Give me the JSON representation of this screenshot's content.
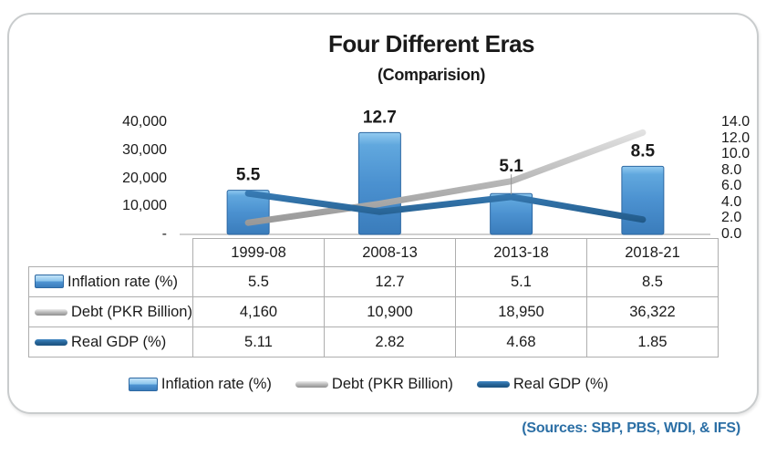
{
  "title": "Four Different Eras",
  "subtitle": "(Comparision)",
  "sources_note": "(Sources: SBP, PBS, WDI, & IFS)",
  "colors": {
    "bar_fill_light": "#93cbf1",
    "bar_fill_main": "#4b91d0",
    "bar_fill_dark": "#3a7cbb",
    "bar_border": "#2d68a2",
    "debt_line_light": "#ededed",
    "debt_line_dark": "#8f8f8f",
    "gdp_line_light": "#3f86c2",
    "gdp_line_dark": "#1d5380",
    "baseline": "#c0c0c0",
    "text": "#1a1a1a",
    "sources_text": "#2c6fa5"
  },
  "chart_data": {
    "type": "combo",
    "title": "Four Different Eras",
    "subtitle": "(Comparision)",
    "categories": [
      "1999-08",
      "2008-13",
      "2013-18",
      "2018-21"
    ],
    "series": [
      {
        "name": "Inflation rate (%)",
        "type": "bar",
        "axis": "right",
        "values": [
          5.5,
          12.7,
          5.1,
          8.5
        ],
        "labels": [
          "5.5",
          "12.7",
          "5.1",
          "8.5"
        ],
        "callout_index": 2
      },
      {
        "name": "Debt (PKR Billion)",
        "type": "line",
        "axis": "left",
        "values": [
          4160,
          10900,
          18950,
          36322
        ],
        "labels": [
          "4,160",
          "10,900",
          "18,950",
          "36,322"
        ]
      },
      {
        "name": "Real GDP (%)",
        "type": "line",
        "axis": "right",
        "values": [
          5.11,
          2.82,
          4.68,
          1.85
        ],
        "labels": [
          "5.11",
          "2.82",
          "4.68",
          "1.85"
        ]
      }
    ],
    "left_axis": {
      "ylim": [
        0,
        40000
      ],
      "ticks": [
        {
          "label": "40,000",
          "value": 40000
        },
        {
          "label": "30,000",
          "value": 30000
        },
        {
          "label": "20,000",
          "value": 20000
        },
        {
          "label": "10,000",
          "value": 10000
        },
        {
          "label": "-",
          "value": 0
        }
      ]
    },
    "right_axis": {
      "ylim": [
        0,
        14
      ],
      "ticks": [
        {
          "label": "14.0",
          "value": 14
        },
        {
          "label": "12.0",
          "value": 12
        },
        {
          "label": "10.0",
          "value": 10
        },
        {
          "label": "8.0",
          "value": 8
        },
        {
          "label": "6.0",
          "value": 6
        },
        {
          "label": "4.0",
          "value": 4
        },
        {
          "label": "2.0",
          "value": 2
        },
        {
          "label": "0.0",
          "value": 0
        }
      ]
    },
    "grid": false,
    "legend_position": "bottom"
  },
  "table": {
    "header": [
      "1999-08",
      "2008-13",
      "2013-18",
      "2018-21"
    ],
    "rows": [
      {
        "icon": "bar-blue",
        "label": "Inflation rate (%)",
        "values": [
          "5.5",
          "12.7",
          "5.1",
          "8.5"
        ]
      },
      {
        "icon": "line-gray",
        "label": "Debt (PKR Billion)",
        "values": [
          "4,160",
          "10,900",
          "18,950",
          "36,322"
        ]
      },
      {
        "icon": "line-darkblue",
        "label": "Real GDP (%)",
        "values": [
          "5.11",
          "2.82",
          "4.68",
          "1.85"
        ]
      }
    ]
  },
  "legend": [
    {
      "icon": "bar-blue",
      "label": "Inflation rate (%)"
    },
    {
      "icon": "line-gray",
      "label": "Debt (PKR Billion)"
    },
    {
      "icon": "line-darkblue",
      "label": "Real GDP (%)"
    }
  ]
}
